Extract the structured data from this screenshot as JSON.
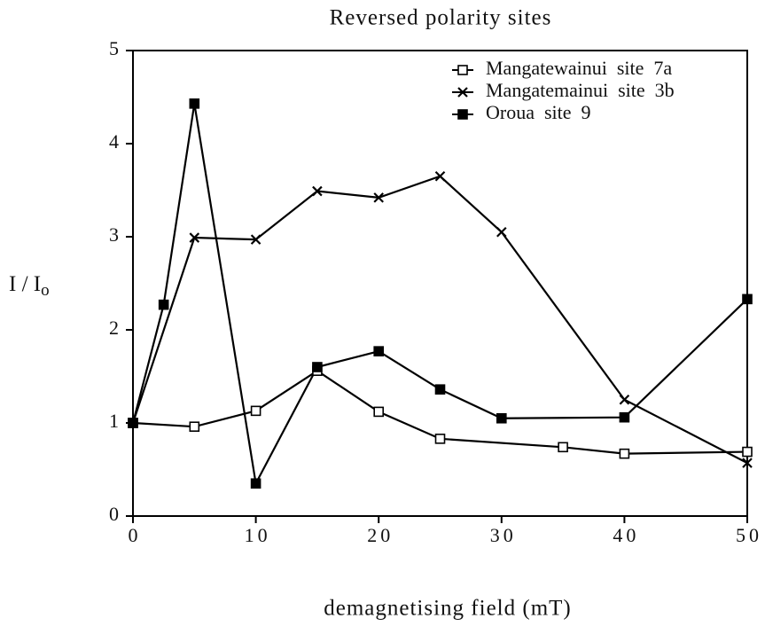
{
  "chart_data": {
    "type": "line",
    "title": "Reversed polarity sites",
    "xlabel": "demagnetising field (mT)",
    "ylabel": "I / I",
    "ylabel_sub": "o",
    "xlim": [
      0,
      50
    ],
    "xticks": [
      0,
      10,
      20,
      30,
      40,
      50
    ],
    "ylim": [
      0,
      5
    ],
    "yticks": [
      0,
      1,
      2,
      3,
      4,
      5
    ],
    "legend": "upper right",
    "series": [
      {
        "name": "Mangatewainui  site  7a",
        "color": "#000000",
        "marker": "open-square",
        "x": [
          0,
          5,
          10,
          15,
          20,
          25,
          35,
          40,
          50
        ],
        "values": [
          1.0,
          0.96,
          1.13,
          1.56,
          1.12,
          0.83,
          0.74,
          0.67,
          0.69
        ]
      },
      {
        "name": "Mangatemainui  site  3b",
        "color": "#000000",
        "marker": "x",
        "x": [
          0,
          5,
          10,
          15,
          20,
          25,
          30,
          40,
          50
        ],
        "values": [
          1.0,
          2.99,
          2.97,
          3.49,
          3.42,
          3.65,
          3.05,
          1.25,
          0.57
        ]
      },
      {
        "name": "Oroua  site  9",
        "color": "#000000",
        "marker": "filled-square",
        "x": [
          0,
          2.5,
          5,
          10,
          15,
          20,
          25,
          30,
          40,
          50
        ],
        "values": [
          1.0,
          2.27,
          4.43,
          0.35,
          1.6,
          1.77,
          1.36,
          1.05,
          1.06,
          2.33
        ]
      }
    ]
  }
}
